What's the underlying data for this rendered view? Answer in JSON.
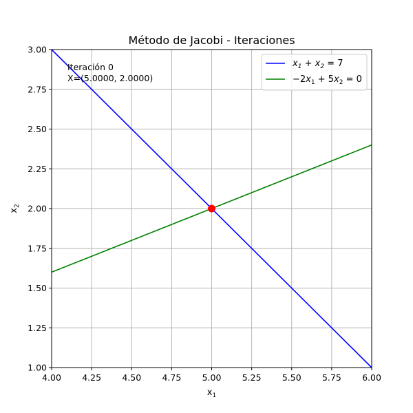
{
  "chart_data": {
    "type": "line",
    "title": "Método de Jacobi - Iteraciones",
    "xlabel": "x",
    "xlabel_sub": "1",
    "ylabel": "x",
    "ylabel_sub": "2",
    "xlim": [
      4.0,
      6.0
    ],
    "ylim": [
      1.0,
      3.0
    ],
    "xticks": [
      "4.00",
      "4.25",
      "4.50",
      "4.75",
      "5.00",
      "5.25",
      "5.50",
      "5.75",
      "6.00"
    ],
    "yticks": [
      "1.00",
      "1.25",
      "1.50",
      "1.75",
      "2.00",
      "2.25",
      "2.50",
      "2.75",
      "3.00"
    ],
    "grid": true,
    "legend_position": "top-right",
    "series": [
      {
        "name": "x1 + x2 = 7",
        "color": "#0000ff",
        "x": [
          4.0,
          6.0
        ],
        "y": [
          3.0,
          1.0
        ]
      },
      {
        "name": "−2x1 + 5x2 = 0",
        "color": "#008000",
        "x": [
          4.0,
          6.0
        ],
        "y": [
          1.6,
          2.4
        ]
      }
    ],
    "points": [
      {
        "x": 5.0,
        "y": 2.0,
        "color": "#ff0000"
      }
    ],
    "annotation": {
      "line1": "Iteración 0",
      "line2": "X=(5.0000, 2.0000)"
    }
  }
}
